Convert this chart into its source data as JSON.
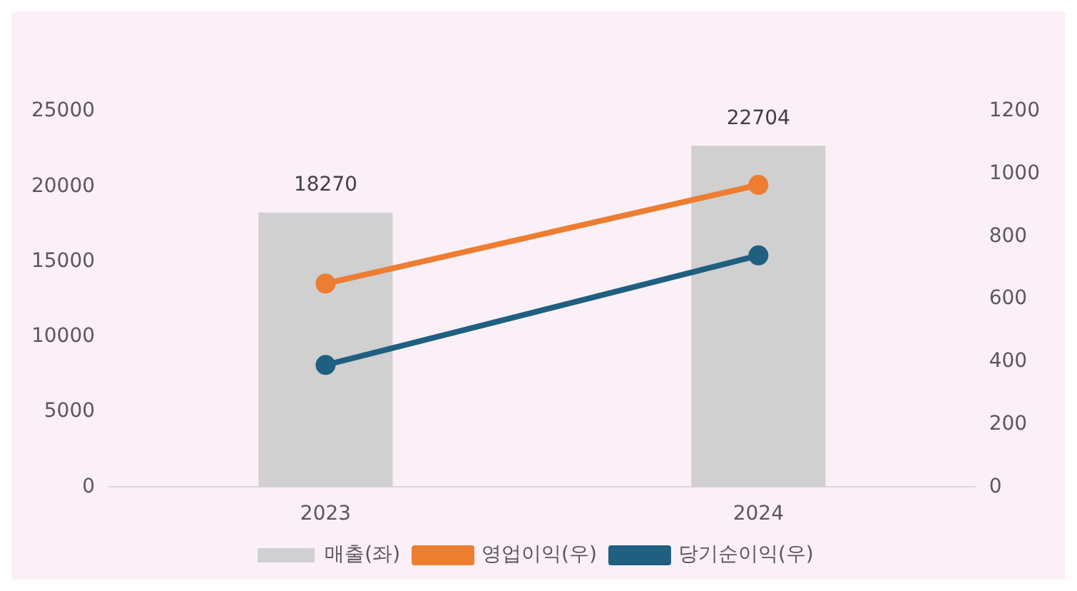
{
  "chart_data": {
    "type": "bar",
    "categories": [
      "2023",
      "2024"
    ],
    "series": [
      {
        "name": "매출(좌)",
        "color": "#d0d0d0",
        "values": [
          18270,
          22704
        ],
        "value_labels": [
          "18270",
          "22704"
        ]
      },
      {
        "name": "영업이익(우)",
        "type": "line",
        "axis": "y2",
        "color": "#ed7d31",
        "values": [
          650,
          965
        ]
      },
      {
        "name": "당기순이익(우)",
        "type": "line",
        "axis": "y2",
        "color": "#1f5f80",
        "values": [
          390,
          740
        ]
      }
    ],
    "ylim": [
      0,
      25000
    ],
    "yticks": [
      0,
      5000,
      10000,
      15000,
      20000,
      25000
    ],
    "y2lim": [
      0,
      1200
    ],
    "y2ticks": [
      0,
      200,
      400,
      600,
      800,
      1000,
      1200
    ],
    "grid": false,
    "legend": "bottom",
    "marker": "circle"
  }
}
